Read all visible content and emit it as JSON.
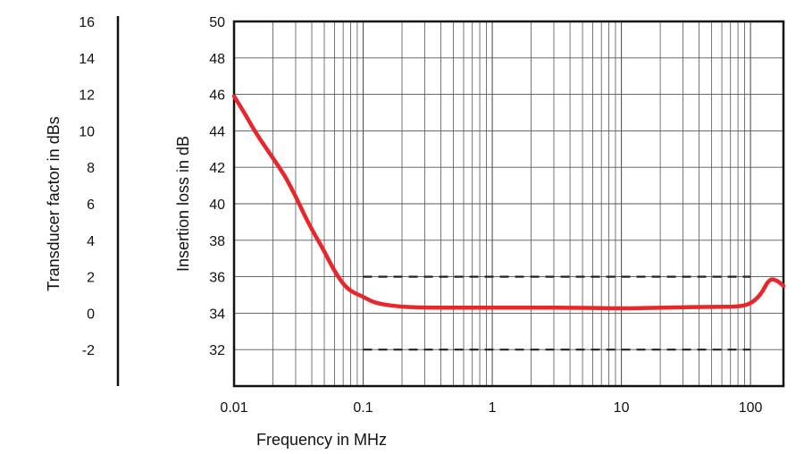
{
  "chart_data": {
    "type": "line",
    "xlabel": "Frequency in MHz",
    "ylabel": "Insertion loss in dB",
    "y2label": "Transducer factor in dBs",
    "x_scale": "log",
    "xlim": [
      0.01,
      180
    ],
    "ylim": [
      30,
      50
    ],
    "y2lim": [
      -4,
      16
    ],
    "grid": true,
    "x_ticks": [
      {
        "value": 0.01,
        "label": "0.01"
      },
      {
        "value": 0.1,
        "label": "0.1"
      },
      {
        "value": 1,
        "label": "1"
      },
      {
        "value": 10,
        "label": "10"
      },
      {
        "value": 100,
        "label": "100"
      }
    ],
    "y_ticks": [
      {
        "value": 32,
        "label": "32"
      },
      {
        "value": 34,
        "label": "34"
      },
      {
        "value": 36,
        "label": "36"
      },
      {
        "value": 38,
        "label": "38"
      },
      {
        "value": 40,
        "label": "40"
      },
      {
        "value": 42,
        "label": "42"
      },
      {
        "value": 44,
        "label": "44"
      },
      {
        "value": 46,
        "label": "46"
      },
      {
        "value": 48,
        "label": "48"
      },
      {
        "value": 50,
        "label": "50"
      }
    ],
    "y2_ticks": [
      {
        "value": -2,
        "label": "-2"
      },
      {
        "value": 0,
        "label": "0"
      },
      {
        "value": 2,
        "label": "2"
      },
      {
        "value": 4,
        "label": "4"
      },
      {
        "value": 6,
        "label": "6"
      },
      {
        "value": 8,
        "label": "8"
      },
      {
        "value": 10,
        "label": "10"
      },
      {
        "value": 12,
        "label": "12"
      },
      {
        "value": 14,
        "label": "14"
      },
      {
        "value": 16,
        "label": "16"
      }
    ],
    "series": [
      {
        "color": "#e8262b",
        "points": [
          [
            0.01,
            45.9
          ],
          [
            0.012,
            45.0
          ],
          [
            0.015,
            43.8
          ],
          [
            0.02,
            42.5
          ],
          [
            0.025,
            41.5
          ],
          [
            0.03,
            40.4
          ],
          [
            0.035,
            39.4
          ],
          [
            0.04,
            38.6
          ],
          [
            0.05,
            37.4
          ],
          [
            0.06,
            36.3
          ],
          [
            0.07,
            35.6
          ],
          [
            0.08,
            35.2
          ],
          [
            0.1,
            34.9
          ],
          [
            0.12,
            34.6
          ],
          [
            0.15,
            34.45
          ],
          [
            0.2,
            34.35
          ],
          [
            0.3,
            34.3
          ],
          [
            0.5,
            34.3
          ],
          [
            1,
            34.3
          ],
          [
            2,
            34.3
          ],
          [
            5,
            34.3
          ],
          [
            10,
            34.25
          ],
          [
            20,
            34.3
          ],
          [
            50,
            34.35
          ],
          [
            80,
            34.35
          ],
          [
            100,
            34.5
          ],
          [
            120,
            35.0
          ],
          [
            140,
            35.9
          ],
          [
            160,
            35.8
          ],
          [
            180,
            35.5
          ]
        ]
      }
    ],
    "reference_lines": [
      {
        "y": 36,
        "x_from": 0.1,
        "x_to": 100,
        "style": "dashed",
        "color": "#222222"
      },
      {
        "y": 32,
        "x_from": 0.1,
        "x_to": 100,
        "style": "dashed",
        "color": "#222222"
      }
    ]
  }
}
